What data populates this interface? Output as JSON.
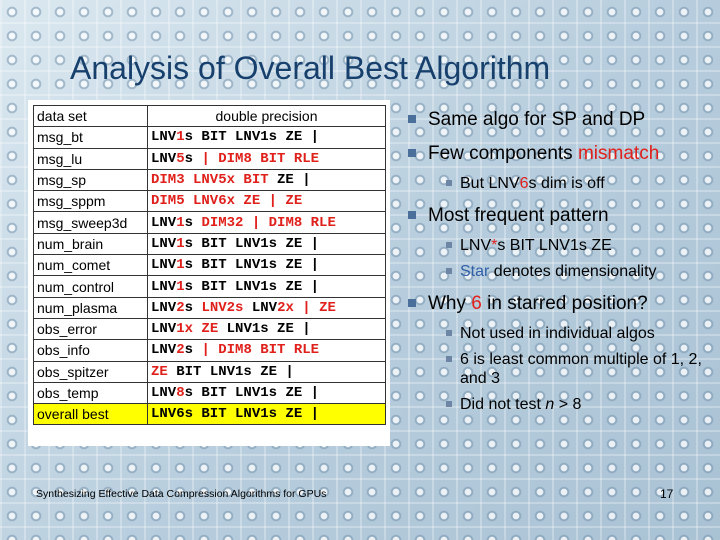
{
  "slide": {
    "title": "Analysis of Overall Best Algorithm",
    "footer": "Synthesizing Effective Data Compression Algorithms for GPUs",
    "page_number": "17"
  },
  "table": {
    "header": {
      "dataset": "data set",
      "config": "double precision"
    },
    "rows": [
      {
        "dataset": "msg_bt",
        "config": [
          {
            "t": "LNV"
          },
          {
            "t": "1",
            "red": true
          },
          {
            "t": "s BIT LNV1s ZE |"
          }
        ]
      },
      {
        "dataset": "msg_lu",
        "config": [
          {
            "t": "LNV"
          },
          {
            "t": "5",
            "red": true
          },
          {
            "t": "s "
          },
          {
            "t": "| DIM8 BIT RLE",
            "red": true
          }
        ]
      },
      {
        "dataset": "msg_sp",
        "config": [
          {
            "t": "DIM3 LNV5x BIT",
            "red": true
          },
          {
            "t": " ZE |"
          }
        ]
      },
      {
        "dataset": "msg_sppm",
        "config": [
          {
            "t": "DIM5 LNV6x ZE | ZE",
            "red": true
          }
        ]
      },
      {
        "dataset": "msg_sweep3d",
        "config": [
          {
            "t": "LNV"
          },
          {
            "t": "1",
            "red": true
          },
          {
            "t": "s "
          },
          {
            "t": "DIM32 | DIM8 RLE",
            "red": true
          }
        ]
      },
      {
        "dataset": "num_brain",
        "config": [
          {
            "t": "LNV"
          },
          {
            "t": "1",
            "red": true
          },
          {
            "t": "s BIT LNV1s ZE |"
          }
        ]
      },
      {
        "dataset": "num_comet",
        "config": [
          {
            "t": "LNV"
          },
          {
            "t": "1",
            "red": true
          },
          {
            "t": "s BIT LNV1s ZE |"
          }
        ]
      },
      {
        "dataset": "num_control",
        "config": [
          {
            "t": "LNV"
          },
          {
            "t": "1",
            "red": true
          },
          {
            "t": "s BIT LNV1s ZE |"
          }
        ]
      },
      {
        "dataset": "num_plasma",
        "config": [
          {
            "t": "LNV"
          },
          {
            "t": "2",
            "red": true
          },
          {
            "t": "s "
          },
          {
            "t": "LNV2s",
            "red": true
          },
          {
            "t": " LNV"
          },
          {
            "t": "2x | ZE",
            "red": true
          }
        ]
      },
      {
        "dataset": "obs_error",
        "config": [
          {
            "t": "LNV"
          },
          {
            "t": "1x ZE",
            "red": true
          },
          {
            "t": " LNV1s ZE |"
          }
        ]
      },
      {
        "dataset": "obs_info",
        "config": [
          {
            "t": "LNV"
          },
          {
            "t": "2",
            "red": true
          },
          {
            "t": "s "
          },
          {
            "t": "| DIM8 BIT RLE",
            "red": true
          }
        ]
      },
      {
        "dataset": "obs_spitzer",
        "config": [
          {
            "t": "ZE",
            "red": true
          },
          {
            "t": " BIT LNV1s ZE |"
          }
        ]
      },
      {
        "dataset": "obs_temp",
        "config": [
          {
            "t": "LNV"
          },
          {
            "t": "8",
            "red": true
          },
          {
            "t": "s BIT LNV1s ZE |"
          }
        ]
      },
      {
        "dataset": "overall best",
        "config": [
          {
            "t": "LNV6s BIT LNV1s ZE |"
          }
        ],
        "highlight": true
      }
    ]
  },
  "bullets": {
    "b1": "Same algo for SP and DP",
    "b2_pre": "Few components ",
    "b2_red": "mismatch",
    "b2_sub1_pre": "But LNV",
    "b2_sub1_red": "6",
    "b2_sub1_post": "s dim is off",
    "b3": "Most frequent pattern",
    "b3_sub1_pre": "LNV",
    "b3_sub1_red": "*",
    "b3_sub1_post": "s BIT LNV1s ZE",
    "b3_sub2_blue": "Star",
    "b3_sub2_post": " denotes dimensionality",
    "b4_pre": "Why ",
    "b4_red": "6",
    "b4_post": " in starred position?",
    "b4_sub1": "Not used in individual algos",
    "b4_sub2": "6 is least common multiple of 1, 2, and 3",
    "b4_sub3_pre": "Did not test ",
    "b4_sub3_var": "n",
    "b4_sub3_post": " > 8"
  },
  "colors": {
    "title": "#17406d",
    "accent_red": "#e0201b",
    "highlight_yellow": "#ffff00",
    "star_blue": "#2f5fa7"
  }
}
